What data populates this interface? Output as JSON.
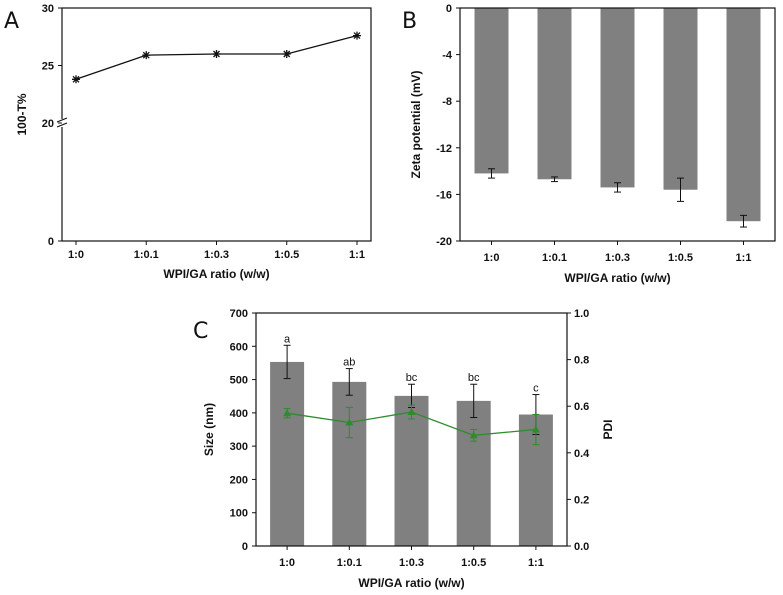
{
  "panels": {
    "a": "A",
    "b": "B",
    "c": "C"
  },
  "colors": {
    "bar": "#808080",
    "line": "#111111",
    "pdi": "#2e8b2e",
    "axis": "#111111"
  },
  "chart_data": [
    {
      "id": "A",
      "type": "line",
      "categories": [
        "1:0",
        "1:0.1",
        "1:0.3",
        "1:0.5",
        "1:1"
      ],
      "values": [
        23.8,
        25.9,
        26.0,
        26.0,
        27.6
      ],
      "xlabel": "WPI/GA ratio (w/w)",
      "ylabel": "100-T%",
      "yticks": [
        "0",
        "20",
        "25",
        "30"
      ],
      "ylim_broken": [
        [
          0,
          20
        ],
        [
          20,
          30
        ]
      ]
    },
    {
      "id": "B",
      "type": "bar",
      "categories": [
        "1:0",
        "1:0.1",
        "1:0.3",
        "1:0.5",
        "1:1"
      ],
      "values": [
        -14.2,
        -14.7,
        -15.4,
        -15.6,
        -18.3
      ],
      "errors": [
        0.4,
        0.2,
        0.4,
        1.0,
        0.5
      ],
      "xlabel": "WPI/GA ratio (w/w)",
      "ylabel": "Zeta potential (mV)",
      "ylim": [
        -20,
        0
      ],
      "yticks": [
        "0",
        "-4",
        "-8",
        "-12",
        "-16",
        "-20"
      ]
    },
    {
      "id": "C",
      "type": "bar",
      "categories": [
        "1:0",
        "1:0.1",
        "1:0.3",
        "1:0.5",
        "1:1"
      ],
      "series": [
        {
          "name": "Size (nm)",
          "values": [
            553,
            493,
            451,
            436,
            395
          ],
          "errors": [
            50,
            40,
            35,
            50,
            60
          ],
          "axis": "left",
          "kind": "bar"
        },
        {
          "name": "PDI",
          "values": [
            0.57,
            0.53,
            0.575,
            0.475,
            0.5
          ],
          "errors": [
            0.02,
            0.065,
            0.03,
            0.025,
            0.065
          ],
          "axis": "right",
          "kind": "line"
        }
      ],
      "letters": [
        "a",
        "ab",
        "bc",
        "bc",
        "c"
      ],
      "xlabel": "WPI/GA ratio (w/w)",
      "ylabel": "Size (nm)",
      "ylabel_right": "PDI",
      "ylim": [
        0,
        700
      ],
      "ylim_right": [
        0,
        1.0
      ],
      "yticks": [
        "0",
        "100",
        "200",
        "300",
        "400",
        "500",
        "600",
        "700"
      ],
      "yticks_right": [
        "0.0",
        "0.2",
        "0.4",
        "0.6",
        "0.8",
        "1.0"
      ]
    }
  ]
}
